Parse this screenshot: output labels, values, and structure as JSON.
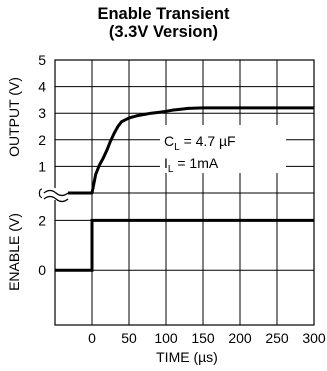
{
  "chart_data": [
    {
      "type": "line",
      "title": "Enable Transient",
      "subtitle": "(3.3V Version)",
      "ylabel": "OUTPUT (V)",
      "ylim": [
        0,
        5
      ],
      "yticks": [
        0,
        1,
        2,
        3,
        4,
        5
      ],
      "xlim": [
        -50,
        300
      ],
      "grid": true,
      "series": [
        {
          "x": [
            -50,
            -25,
            0,
            5,
            10,
            15,
            20,
            25,
            30,
            35,
            40,
            45,
            50,
            55,
            60,
            70,
            80,
            90,
            100,
            110,
            120,
            130,
            150,
            200,
            250,
            300
          ],
          "values": [
            0,
            0,
            0,
            0.7,
            1.05,
            1.3,
            1.6,
            1.95,
            2.25,
            2.5,
            2.68,
            2.75,
            2.82,
            2.86,
            2.9,
            2.95,
            3.0,
            3.03,
            3.07,
            3.12,
            3.15,
            3.18,
            3.2,
            3.2,
            3.2,
            3.2
          ]
        }
      ],
      "annotations": [
        {
          "label": "C",
          "sub": "L",
          "text": " = 4.7 µF"
        },
        {
          "label": "I",
          "sub": "L",
          "text": " = 1mA"
        }
      ]
    },
    {
      "type": "line",
      "ylabel": "ENABLE (V)",
      "ylim": [
        -2.2,
        3.1
      ],
      "yticks": [
        0,
        2
      ],
      "xlabel": "TIME (µs)",
      "xlim": [
        -50,
        300
      ],
      "xticks": [
        0,
        50,
        100,
        150,
        200,
        250,
        300
      ],
      "grid": true,
      "series": [
        {
          "x": [
            -50,
            0,
            0,
            300
          ],
          "values": [
            0,
            0,
            2,
            2
          ]
        }
      ]
    }
  ]
}
